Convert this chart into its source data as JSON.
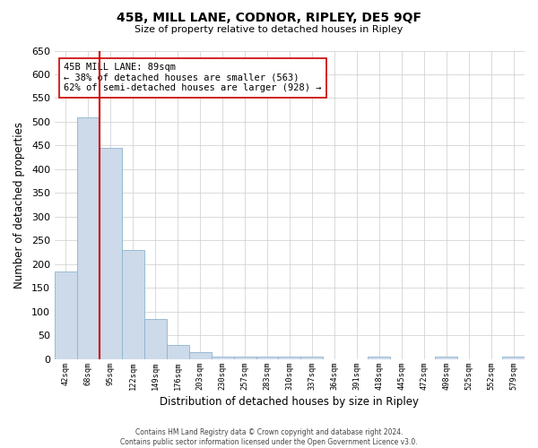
{
  "title": "45B, MILL LANE, CODNOR, RIPLEY, DE5 9QF",
  "subtitle": "Size of property relative to detached houses in Ripley",
  "xlabel": "Distribution of detached houses by size in Ripley",
  "ylabel": "Number of detached properties",
  "bar_labels": [
    "42sqm",
    "68sqm",
    "95sqm",
    "122sqm",
    "149sqm",
    "176sqm",
    "203sqm",
    "230sqm",
    "257sqm",
    "283sqm",
    "310sqm",
    "337sqm",
    "364sqm",
    "391sqm",
    "418sqm",
    "445sqm",
    "472sqm",
    "498sqm",
    "525sqm",
    "552sqm",
    "579sqm"
  ],
  "bar_values": [
    185,
    510,
    445,
    230,
    85,
    30,
    15,
    5,
    5,
    5,
    5,
    5,
    0,
    0,
    5,
    0,
    0,
    5,
    0,
    0,
    5
  ],
  "bar_color": "#ccdaea",
  "bar_edge_color": "#8eb4cc",
  "red_line_x": 1.5,
  "red_line_label": "45B MILL LANE: 89sqm",
  "annotation_line1": "← 38% of detached houses are smaller (563)",
  "annotation_line2": "62% of semi-detached houses are larger (928) →",
  "annotation_box_color": "#ffffff",
  "annotation_box_edge": "#cc0000",
  "ylim": [
    0,
    650
  ],
  "yticks": [
    0,
    50,
    100,
    150,
    200,
    250,
    300,
    350,
    400,
    450,
    500,
    550,
    600,
    650
  ],
  "footer_line1": "Contains HM Land Registry data © Crown copyright and database right 2024.",
  "footer_line2": "Contains public sector information licensed under the Open Government Licence v3.0.",
  "background_color": "#ffffff",
  "grid_color": "#cccccc"
}
